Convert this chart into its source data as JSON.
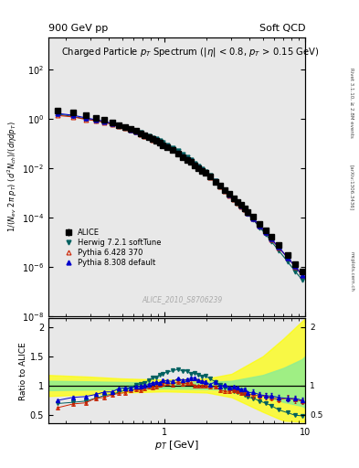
{
  "title_top_left": "900 GeV pp",
  "title_top_right": "Soft QCD",
  "plot_title": "Charged Particle $p_T$ Spectrum (|$\\eta$| < 0.8, $p_T$ > 0.15 GeV)",
  "ylabel_main": "1/(N$_{ev}$ 2$\\pi$ p$_T$) (d$^2$N$_{ch}$)/(d$\\eta$dp$_T$)",
  "ylabel_ratio": "Ratio to ALICE",
  "xlabel": "p$_T$ [GeV]",
  "watermark": "ALICE_2010_S8706239",
  "right_label1": "Rivet 3.1.10, ≥ 2.8M events",
  "right_label2": "[arXiv:1306.3436]",
  "right_label3": "mcplots.cern.ch",
  "legend": [
    "ALICE",
    "Herwig 7.2.1 softTune",
    "Pythia 6.428 370",
    "Pythia 8.308 default"
  ],
  "colors": {
    "alice": "#000000",
    "herwig": "#006060",
    "pythia6": "#cc2200",
    "pythia8": "#0000cc"
  },
  "xlim": [
    0.15,
    10.0
  ],
  "ylim_main": [
    1e-08,
    2000.0
  ],
  "ylim_ratio": [
    0.35,
    2.15
  ],
  "background_color": "#ffffff",
  "panel_bg": "#e8e8e8"
}
